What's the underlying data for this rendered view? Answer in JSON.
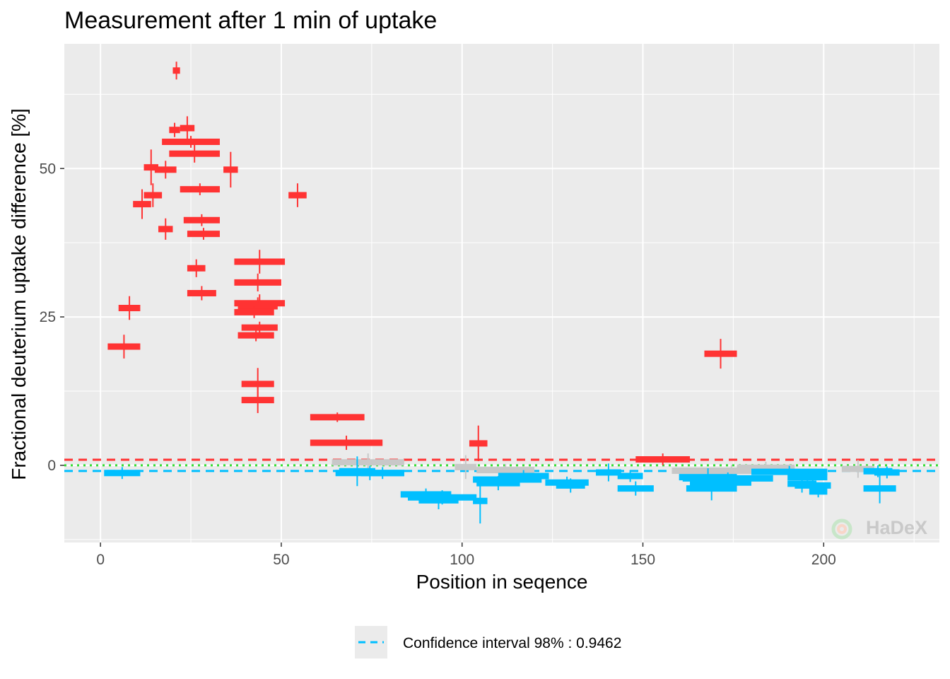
{
  "chart_data": {
    "type": "scatter",
    "title": "Measurement after 1 min of uptake",
    "xlabel": "Position in seqence",
    "ylabel": "Fractional deuterium uptake difference [%]",
    "xlim": [
      -10,
      232
    ],
    "ylim": [
      -13,
      71
    ],
    "x_ticks": [
      0,
      50,
      100,
      150,
      200
    ],
    "y_ticks": [
      0,
      25,
      50
    ],
    "grid": true,
    "confidence_interval": 0.9462,
    "zero_line": 0,
    "legend": {
      "placement": "bottom",
      "label": "Confidence interval 98% : 0.9462"
    },
    "watermark": "HaDeX",
    "colors": {
      "significant_positive": "#ff3333",
      "significant_negative": "#00bfff",
      "not_significant": "#c8c8c8",
      "upper_ci_line": "#ff3333",
      "lower_ci_line": "#00bfff",
      "zero_line": "#33dd33",
      "panel_background": "#ebebeb",
      "grid": "#ffffff"
    },
    "peptides": [
      {
        "start": 20,
        "end": 22,
        "value": 66.5,
        "error": 1.5
      },
      {
        "start": 19,
        "end": 22,
        "value": 56.5,
        "error": 1.2
      },
      {
        "start": 22,
        "end": 26,
        "value": 56.8,
        "error": 2.0
      },
      {
        "start": 17,
        "end": 33,
        "value": 54.5,
        "error": 1.0
      },
      {
        "start": 19,
        "end": 33,
        "value": 52.5,
        "error": 1.5
      },
      {
        "start": 12,
        "end": 16,
        "value": 50.2,
        "error": 3.0
      },
      {
        "start": 15,
        "end": 21,
        "value": 49.8,
        "error": 1.5
      },
      {
        "start": 34,
        "end": 38,
        "value": 49.8,
        "error": 3.0
      },
      {
        "start": 12,
        "end": 17,
        "value": 45.5,
        "error": 2.0
      },
      {
        "start": 22,
        "end": 33,
        "value": 46.5,
        "error": 1.0
      },
      {
        "start": 52,
        "end": 57,
        "value": 45.5,
        "error": 2.0
      },
      {
        "start": 9,
        "end": 14,
        "value": 44.0,
        "error": 2.5
      },
      {
        "start": 23,
        "end": 33,
        "value": 41.3,
        "error": 1.0
      },
      {
        "start": 16,
        "end": 20,
        "value": 39.8,
        "error": 1.8
      },
      {
        "start": 24,
        "end": 33,
        "value": 39.0,
        "error": 1.0
      },
      {
        "start": 24,
        "end": 29,
        "value": 33.2,
        "error": 1.5
      },
      {
        "start": 37,
        "end": 51,
        "value": 34.3,
        "error": 2.0
      },
      {
        "start": 37,
        "end": 50,
        "value": 30.8,
        "error": 1.5
      },
      {
        "start": 24,
        "end": 32,
        "value": 29.0,
        "error": 1.2
      },
      {
        "start": 37,
        "end": 51,
        "value": 27.3,
        "error": 1.5
      },
      {
        "start": 38,
        "end": 49,
        "value": 26.8,
        "error": 1.5
      },
      {
        "start": 37,
        "end": 48,
        "value": 25.8,
        "error": 1.0
      },
      {
        "start": 5,
        "end": 11,
        "value": 26.5,
        "error": 2.0
      },
      {
        "start": 39,
        "end": 49,
        "value": 23.2,
        "error": 1.0
      },
      {
        "start": 38,
        "end": 48,
        "value": 21.9,
        "error": 1.0
      },
      {
        "start": 2,
        "end": 11,
        "value": 20.0,
        "error": 2.0
      },
      {
        "start": 39,
        "end": 48,
        "value": 13.7,
        "error": 2.7
      },
      {
        "start": 39,
        "end": 48,
        "value": 11.0,
        "error": 2.2
      },
      {
        "start": 58,
        "end": 73,
        "value": 8.1,
        "error": 0.8
      },
      {
        "start": 58,
        "end": 78,
        "value": 3.8,
        "error": 1.2
      },
      {
        "start": 102,
        "end": 107,
        "value": 3.7,
        "error": 3.0
      },
      {
        "start": 167,
        "end": 176,
        "value": 18.8,
        "error": 2.5
      },
      {
        "start": 1,
        "end": 11,
        "value": -1.3,
        "error": 1.0
      },
      {
        "start": 64,
        "end": 84,
        "value": 0.5,
        "error": 1.5
      },
      {
        "start": 65,
        "end": 84,
        "value": -1.3,
        "error": 1.2
      },
      {
        "start": 66,
        "end": 76,
        "value": -1.0,
        "error": 2.5
      },
      {
        "start": 72,
        "end": 84,
        "value": -1.3,
        "error": 1.0
      },
      {
        "start": 83,
        "end": 97,
        "value": -4.9,
        "error": 1.0
      },
      {
        "start": 85,
        "end": 104,
        "value": -5.4,
        "error": 1.2
      },
      {
        "start": 88,
        "end": 99,
        "value": -5.9,
        "error": 1.5
      },
      {
        "start": 98,
        "end": 104,
        "value": -0.3,
        "error": 2.0
      },
      {
        "start": 104,
        "end": 120,
        "value": -0.8,
        "error": 1.0
      },
      {
        "start": 103,
        "end": 122,
        "value": -2.4,
        "error": 1.0
      },
      {
        "start": 104,
        "end": 116,
        "value": -3.0,
        "error": 1.2
      },
      {
        "start": 103,
        "end": 107,
        "value": -6.0,
        "error": 3.8
      },
      {
        "start": 110,
        "end": 124,
        "value": -1.8,
        "error": 1.0
      },
      {
        "start": 123,
        "end": 135,
        "value": -2.9,
        "error": 1.0
      },
      {
        "start": 126,
        "end": 134,
        "value": -3.4,
        "error": 1.2
      },
      {
        "start": 137,
        "end": 144,
        "value": -1.2,
        "error": 1.5
      },
      {
        "start": 143,
        "end": 150,
        "value": -1.8,
        "error": 1.0
      },
      {
        "start": 143,
        "end": 153,
        "value": -3.9,
        "error": 1.2
      },
      {
        "start": 148,
        "end": 163,
        "value": 1.0,
        "error": 1.0
      },
      {
        "start": 158,
        "end": 191,
        "value": -0.9,
        "error": 1.0
      },
      {
        "start": 160,
        "end": 176,
        "value": -2.0,
        "error": 1.5
      },
      {
        "start": 161,
        "end": 186,
        "value": -2.2,
        "error": 1.0
      },
      {
        "start": 163,
        "end": 180,
        "value": -2.9,
        "error": 1.2
      },
      {
        "start": 162,
        "end": 176,
        "value": -3.9,
        "error": 2.0
      },
      {
        "start": 176,
        "end": 192,
        "value": -0.4,
        "error": 1.0
      },
      {
        "start": 180,
        "end": 201,
        "value": -1.1,
        "error": 1.0
      },
      {
        "start": 190,
        "end": 201,
        "value": -2.0,
        "error": 1.0
      },
      {
        "start": 190,
        "end": 198,
        "value": -3.1,
        "error": 1.5
      },
      {
        "start": 192,
        "end": 202,
        "value": -3.4,
        "error": 1.2
      },
      {
        "start": 196,
        "end": 201,
        "value": -4.4,
        "error": 1.0
      },
      {
        "start": 205,
        "end": 214,
        "value": -0.6,
        "error": 1.5
      },
      {
        "start": 211,
        "end": 219,
        "value": -1.0,
        "error": 1.0
      },
      {
        "start": 214,
        "end": 221,
        "value": -1.2,
        "error": 1.0
      },
      {
        "start": 211,
        "end": 220,
        "value": -3.9,
        "error": 2.5
      }
    ]
  }
}
